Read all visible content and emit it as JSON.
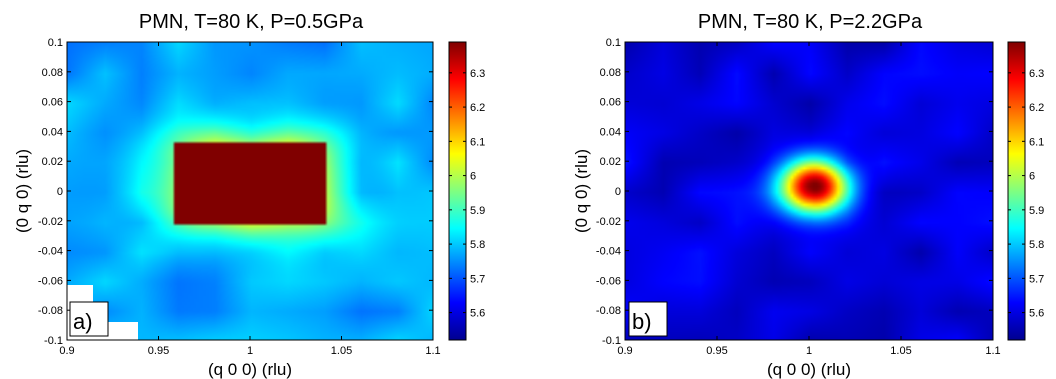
{
  "chart_data": [
    {
      "type": "heatmap",
      "title": "PMN, T=80 K, P=0.5GPa",
      "xlabel": "(q 0 0) (rlu)",
      "ylabel": "(0 q 0) (rlu)",
      "panel_label": "a)",
      "xlim": [
        0.9,
        1.1
      ],
      "ylim": [
        -0.1,
        0.1
      ],
      "xticks": [
        0.9,
        0.95,
        1,
        1.05,
        1.1
      ],
      "xtick_labels": [
        "0.9",
        "0.95",
        "1",
        "1.05",
        "1.1"
      ],
      "yticks": [
        -0.1,
        -0.08,
        -0.06,
        -0.04,
        -0.02,
        0,
        0.02,
        0.04,
        0.06,
        0.08,
        0.1
      ],
      "ytick_labels": [
        "-0.1",
        "-0.08",
        "-0.06",
        "-0.04",
        "-0.02",
        "0",
        "0.02",
        "0.04",
        "0.06",
        "0.08",
        "0.1"
      ],
      "clim": [
        5.52,
        6.39
      ],
      "colorbar_ticks": [
        5.6,
        5.7,
        5.8,
        5.9,
        6,
        6.1,
        6.2,
        6.3
      ],
      "colorbar_tick_labels": [
        "5.6",
        "5.7",
        "5.8",
        "5.9",
        "6",
        "6.1",
        "6.2",
        "6.3"
      ],
      "colormap": "jet",
      "peak": {
        "x": 1.0,
        "y": 0.005,
        "sx": 0.04,
        "sy": 0.027,
        "amplitude": 0.62,
        "shape": "square"
      },
      "background": 5.77,
      "peak_value": 6.39
    },
    {
      "type": "heatmap",
      "title": "PMN, T=80 K, P=2.2GPa",
      "xlabel": "(q 0 0) (rlu)",
      "ylabel": "(0 q 0) (rlu)",
      "panel_label": "b)",
      "xlim": [
        0.9,
        1.1
      ],
      "ylim": [
        -0.1,
        0.1
      ],
      "xticks": [
        0.9,
        0.95,
        1,
        1.05,
        1.1
      ],
      "xtick_labels": [
        "0.9",
        "0.95",
        "1",
        "1.05",
        "1.1"
      ],
      "yticks": [
        -0.1,
        -0.08,
        -0.06,
        -0.04,
        -0.02,
        0,
        0.02,
        0.04,
        0.06,
        0.08,
        0.1
      ],
      "ytick_labels": [
        "-0.1",
        "-0.08",
        "-0.06",
        "-0.04",
        "-0.02",
        "0",
        "0.02",
        "0.04",
        "0.06",
        "0.08",
        "0.1"
      ],
      "clim": [
        5.52,
        6.39
      ],
      "colorbar_ticks": [
        5.6,
        5.7,
        5.8,
        5.9,
        6,
        6.1,
        6.2,
        6.3
      ],
      "colorbar_tick_labels": [
        "5.6",
        "5.7",
        "5.8",
        "5.9",
        "6",
        "6.1",
        "6.2",
        "6.3"
      ],
      "colormap": "jet",
      "peak": {
        "x": 1.003,
        "y": 0.003,
        "sx": 0.018,
        "sy": 0.018,
        "amplitude": 0.82,
        "shape": "round"
      },
      "background": 5.6,
      "peak_value": 6.39
    }
  ]
}
